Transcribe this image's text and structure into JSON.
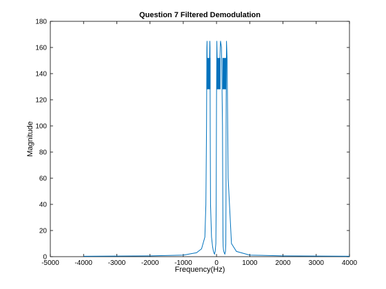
{
  "chart_data": {
    "type": "line",
    "title": "Question 7 Filtered Demodulation",
    "xlabel": "Frequency(Hz)",
    "ylabel": "Magnitude",
    "xlim": [
      -5000,
      4000
    ],
    "ylim": [
      0,
      180
    ],
    "xticks": [
      -5000,
      -4000,
      -3000,
      -2000,
      -1000,
      0,
      1000,
      2000,
      3000,
      4000
    ],
    "yticks": [
      0,
      20,
      40,
      60,
      80,
      100,
      120,
      140,
      160,
      180
    ],
    "grid": false,
    "line_color": "#0072BD",
    "series": [
      {
        "description_points": "approximate envelope of the magnitude spectrum",
        "x": [
          -4000,
          -2000,
          -1000,
          -600,
          -450,
          -350,
          -320,
          -300,
          -290,
          -285,
          -280,
          -270,
          -250,
          -230,
          -210,
          -200,
          -195,
          -190,
          -180,
          -150,
          -120,
          -100,
          -80,
          -60,
          -40,
          -20,
          -10,
          0,
          10,
          20,
          40,
          60,
          80,
          100,
          120,
          150,
          180,
          190,
          195,
          200,
          210,
          230,
          250,
          270,
          280,
          285,
          290,
          300,
          320,
          350,
          450,
          600,
          1000,
          2000,
          4000
        ],
        "y": [
          0.3,
          0.6,
          1.2,
          3,
          6,
          15,
          40,
          100,
          160,
          165,
          150,
          135,
          130,
          135,
          150,
          165,
          160,
          100,
          40,
          15,
          8,
          5,
          3,
          2,
          4,
          10,
          40,
          120,
          165,
          150,
          135,
          130,
          135,
          150,
          165,
          160,
          100,
          40,
          15,
          8,
          5,
          3,
          2,
          4,
          10,
          40,
          120,
          165,
          150,
          60,
          10,
          4,
          1.2,
          0.6,
          0.3
        ]
      }
    ]
  }
}
